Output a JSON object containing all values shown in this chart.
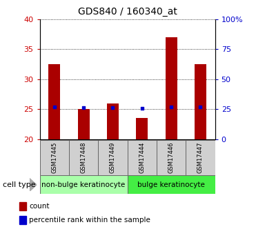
{
  "title": "GDS840 / 160340_at",
  "samples": [
    "GSM17445",
    "GSM17448",
    "GSM17449",
    "GSM17444",
    "GSM17446",
    "GSM17447"
  ],
  "count_values": [
    32.5,
    25.0,
    26.0,
    23.5,
    37.0,
    32.5
  ],
  "percentile_values": [
    27.0,
    26.3,
    26.3,
    25.6,
    27.0,
    27.0
  ],
  "ylim_left": [
    20,
    40
  ],
  "ylim_right": [
    0,
    100
  ],
  "yticks_left": [
    20,
    25,
    30,
    35,
    40
  ],
  "yticks_right": [
    0,
    25,
    50,
    75,
    100
  ],
  "ytick_labels_right": [
    "0",
    "25",
    "50",
    "75",
    "100%"
  ],
  "bar_color": "#aa0000",
  "dot_color": "#0000cc",
  "bar_bottom": 20,
  "groups": [
    {
      "label": "non-bulge keratinocyte",
      "indices": [
        0,
        1,
        2
      ],
      "color": "#aaffaa"
    },
    {
      "label": "bulge keratinocyte",
      "indices": [
        3,
        4,
        5
      ],
      "color": "#44ee44"
    }
  ],
  "cell_type_label": "cell type",
  "legend_items": [
    {
      "color": "#aa0000",
      "label": "count"
    },
    {
      "color": "#0000cc",
      "label": "percentile rank within the sample"
    }
  ],
  "bg_color": "#ffffff",
  "plot_bg": "#ffffff",
  "tick_label_color_left": "#cc0000",
  "tick_label_color_right": "#0000cc",
  "title_fontsize": 10,
  "tick_fontsize": 8,
  "sample_label_fontsize": 6,
  "group_label_fontsize": 7.5,
  "legend_fontsize": 7.5,
  "cell_type_fontsize": 8
}
